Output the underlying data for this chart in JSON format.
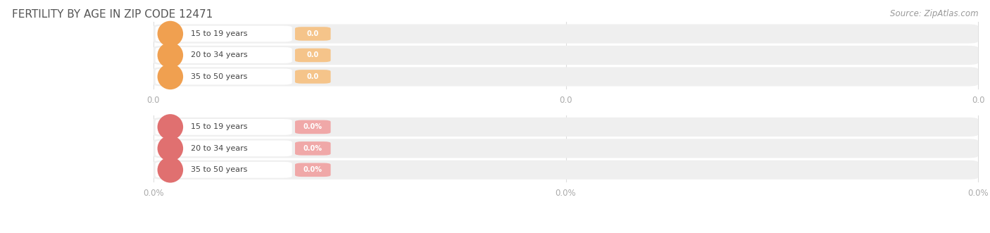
{
  "title": "FERTILITY BY AGE IN ZIP CODE 12471",
  "source_text": "Source: ZipAtlas.com",
  "top_categories": [
    "15 to 19 years",
    "20 to 34 years",
    "35 to 50 years"
  ],
  "bottom_categories": [
    "15 to 19 years",
    "20 to 34 years",
    "35 to 50 years"
  ],
  "top_labels": [
    "0.0",
    "0.0",
    "0.0"
  ],
  "bottom_labels": [
    "0.0%",
    "0.0%",
    "0.0%"
  ],
  "top_bar_color": "#f5c48a",
  "top_icon_color": "#f0a050",
  "bottom_bar_color": "#f0a8a8",
  "bottom_icon_color": "#e07070",
  "bar_bg_color": "#efefef",
  "title_color": "#555555",
  "source_color": "#999999",
  "category_text_color": "#444444",
  "value_text_color": "#ffffff",
  "axis_label_color": "#aaaaaa",
  "grid_color": "#dddddd",
  "top_axis_labels": [
    "0.0",
    "0.0",
    "0.0"
  ],
  "bottom_axis_labels": [
    "0.0%",
    "0.0%",
    "0.0%"
  ],
  "background_color": "#ffffff"
}
